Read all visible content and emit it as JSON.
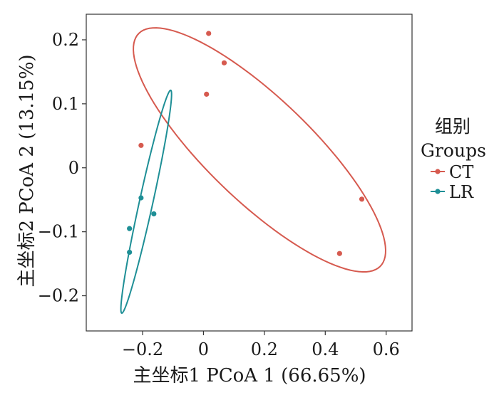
{
  "chart_data": {
    "type": "scatter",
    "xlabel": "主坐标1 PCoA 1 (66.65%)",
    "ylabel": "主坐标2 PCoA 2 (13.15%)",
    "xlim": [
      -0.385,
      0.685
    ],
    "ylim": [
      -0.255,
      0.24
    ],
    "x_ticks": [
      -0.2,
      0.0,
      0.2,
      0.4,
      0.6
    ],
    "x_tick_labels": [
      "−0.2",
      "0",
      "0.2",
      "0.4",
      "0.6"
    ],
    "y_ticks": [
      -0.2,
      -0.1,
      0.0,
      0.1,
      0.2
    ],
    "y_tick_labels": [
      "−0.2",
      "−0.1",
      "0",
      "0.1",
      "0.2"
    ],
    "grid": false,
    "legend": {
      "title_lines": [
        "组别",
        "Groups"
      ],
      "placement": "right"
    },
    "series": [
      {
        "name": "CT",
        "color": "#d65a4f",
        "points": [
          {
            "x": 0.017,
            "y": 0.21
          },
          {
            "x": 0.068,
            "y": 0.164
          },
          {
            "x": 0.01,
            "y": 0.115
          },
          {
            "x": -0.205,
            "y": 0.035
          },
          {
            "x": 0.52,
            "y": -0.049
          },
          {
            "x": 0.447,
            "y": -0.134
          }
        ],
        "ellipse": {
          "center": [
            0.184,
            0.028
          ],
          "semi_major": 0.445,
          "semi_minor": 0.1,
          "angle_deg": -22
        }
      },
      {
        "name": "LR",
        "color": "#1e8f96",
        "points": [
          {
            "x": -0.205,
            "y": -0.047
          },
          {
            "x": -0.163,
            "y": -0.072
          },
          {
            "x": -0.243,
            "y": -0.095
          },
          {
            "x": -0.243,
            "y": -0.132
          }
        ],
        "ellipse": {
          "center": [
            -0.188,
            -0.053
          ],
          "semi_major": 0.192,
          "semi_minor": 0.0205,
          "angle_deg": 65
        }
      }
    ]
  }
}
